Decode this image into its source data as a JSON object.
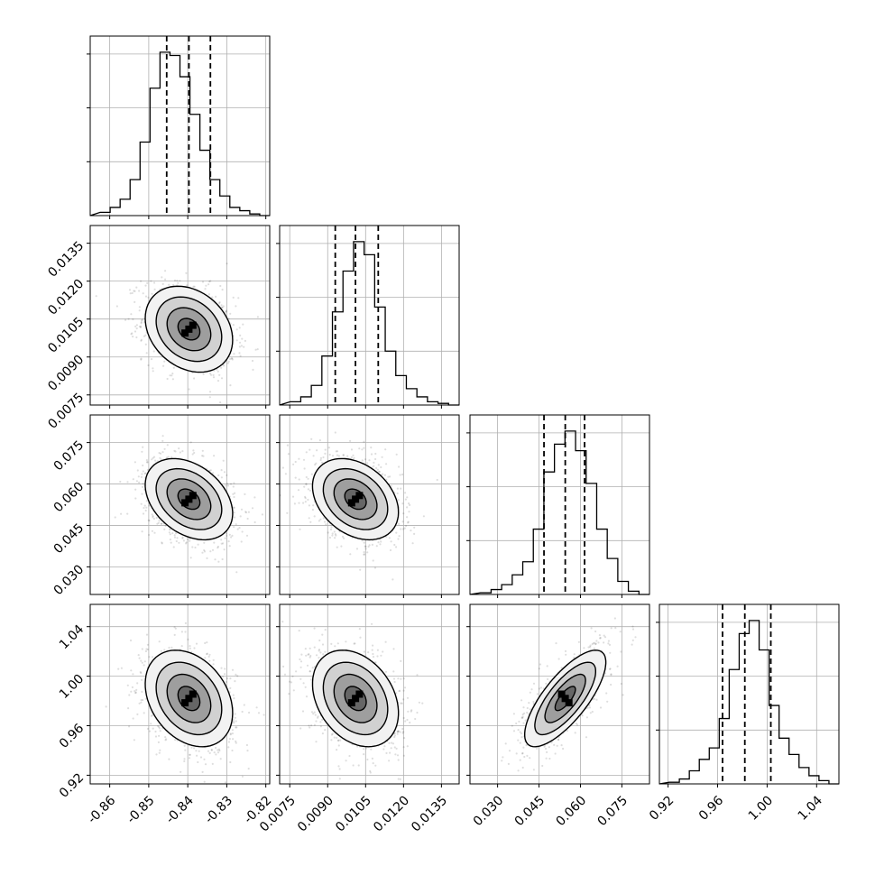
{
  "chart_data": {
    "type": "corner",
    "grid": true,
    "parameters": [
      {
        "range": [
          -0.865,
          -0.819
        ],
        "ticks": [
          "-0.86",
          "-0.85",
          "-0.84",
          "-0.83",
          "-0.82"
        ],
        "tick_values": [
          -0.86,
          -0.85,
          -0.84,
          -0.83,
          -0.82
        ],
        "quantiles": [
          -0.8454,
          -0.8397,
          -0.8342
        ],
        "hist_counts": [
          2,
          5,
          10,
          22,
          45,
          78,
          100,
          98,
          85,
          62,
          40,
          22,
          12,
          5,
          3,
          1
        ]
      },
      {
        "range": [
          0.0071,
          0.0142
        ],
        "ticks": [
          "0.0075",
          "0.0090",
          "0.0105",
          "0.0120",
          "0.0135"
        ],
        "tick_values": [
          0.0075,
          0.009,
          0.0105,
          0.012,
          0.0135
        ],
        "quantiles": [
          0.0093,
          0.0101,
          0.011
        ],
        "hist_counts": [
          2,
          5,
          12,
          30,
          57,
          82,
          100,
          92,
          60,
          33,
          18,
          10,
          5,
          2,
          1
        ]
      },
      {
        "range": [
          0.02,
          0.085
        ],
        "ticks": [
          "0.030",
          "0.045",
          "0.060",
          "0.075"
        ],
        "tick_values": [
          0.03,
          0.045,
          0.06,
          0.075
        ],
        "quantiles": [
          0.0468,
          0.0545,
          0.0615
        ],
        "hist_counts": [
          1,
          3,
          6,
          12,
          20,
          40,
          75,
          92,
          100,
          88,
          68,
          40,
          22,
          8,
          2
        ]
      },
      {
        "range": [
          0.913,
          1.058
        ],
        "ticks": [
          "0.92",
          "0.96",
          "1.00",
          "1.04"
        ],
        "tick_values": [
          0.92,
          0.96,
          1.0,
          1.04
        ],
        "quantiles": [
          0.964,
          0.982,
          1.003
        ],
        "hist_counts": [
          1,
          3,
          8,
          15,
          22,
          40,
          70,
          92,
          100,
          82,
          48,
          28,
          18,
          10,
          5,
          2
        ]
      }
    ],
    "pairs": [
      {
        "i": 1,
        "j": 0,
        "rho": -0.25
      },
      {
        "i": 2,
        "j": 0,
        "rho": -0.35
      },
      {
        "i": 2,
        "j": 1,
        "rho": -0.32
      },
      {
        "i": 3,
        "j": 0,
        "rho": -0.3
      },
      {
        "i": 3,
        "j": 1,
        "rho": -0.3
      },
      {
        "i": 3,
        "j": 2,
        "rho": 0.75
      }
    ]
  }
}
